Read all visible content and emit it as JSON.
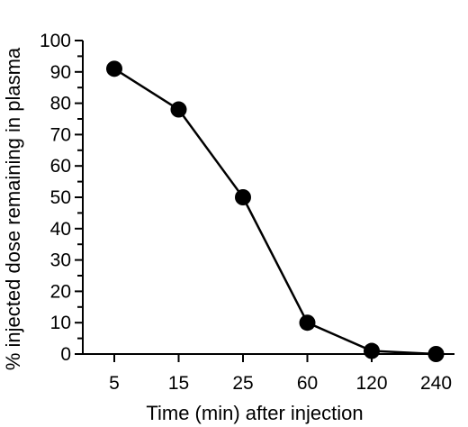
{
  "chart_data": {
    "type": "line",
    "categories": [
      "5",
      "15",
      "25",
      "60",
      "120",
      "240"
    ],
    "series": [
      {
        "values": [
          91,
          78,
          50,
          10,
          1,
          0
        ]
      }
    ],
    "title": "",
    "xlabel": "Time (min) after injection",
    "ylabel": "% injected dose remaining in plasma",
    "ylim": [
      0,
      100
    ],
    "yticks": [
      0,
      10,
      20,
      30,
      40,
      50,
      60,
      70,
      80,
      90,
      100
    ],
    "grid": false,
    "legend": "none",
    "marker": "filled-circle",
    "line_color": "#000000"
  }
}
